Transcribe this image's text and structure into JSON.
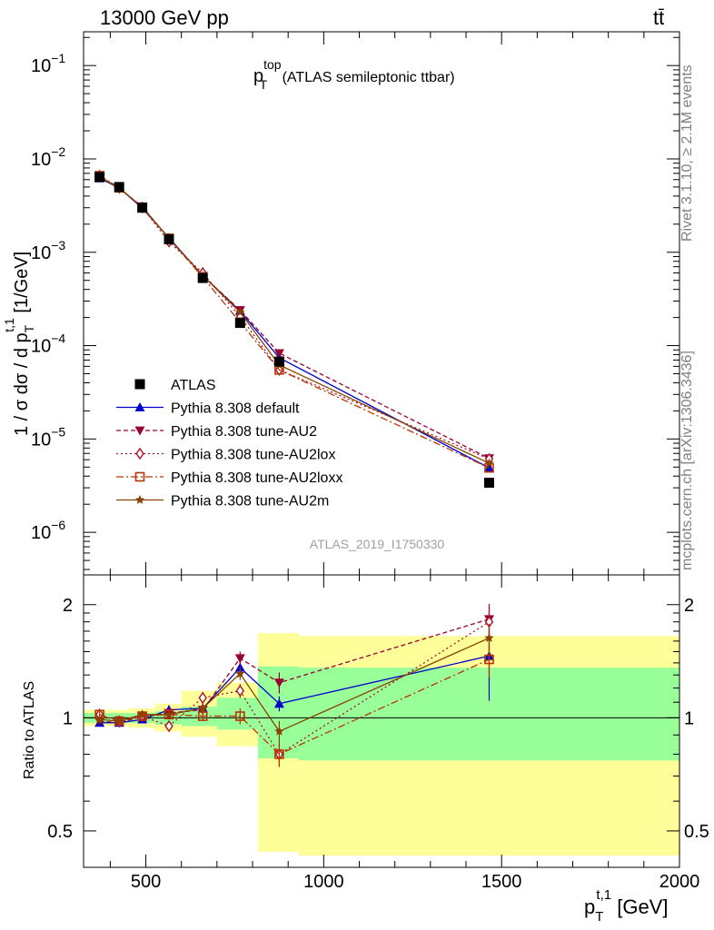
{
  "header": {
    "collision": "13000 GeV pp",
    "process": "tt̄"
  },
  "plot_title": {
    "main": "p",
    "sup": "top",
    "sub": "T",
    "rest": " (ATLAS semileptonic ttbar)"
  },
  "side_labels": {
    "rivet": "Rivet 3.1.10, ≥ 2.1M events",
    "mcplots": "mcplots.cern.ch [arXiv:1306.3436]"
  },
  "analysis_id": "ATLAS_2019_I1750330",
  "colors": {
    "atlas": "#000000",
    "default": "#0000cc",
    "au2": "#990033",
    "au2lox": "#aa1122",
    "au2loxx": "#bb3300",
    "au2m": "#884400",
    "band_yellow": "#ffff99",
    "band_green": "#99ff99"
  },
  "chart_data": [
    {
      "type": "line",
      "xlabel": "p_T^{t,1} [GeV]",
      "ylabel": "1 / σ dσ / d p_T^{t,1} [1/GeV]",
      "ylabel_parts": {
        "a": "1 / σ dσ / d p",
        "sub": "T",
        "sup": "t,1",
        "b": " [1/GeV]"
      },
      "xlabel_parts": {
        "a": "p",
        "sub": "T",
        "sup": "t,1",
        "b": " [GeV]"
      },
      "yscale": "log",
      "xlim": [
        325,
        2000
      ],
      "ylim": [
        3.5e-07,
        0.23
      ],
      "yticks": [
        {
          "v": 1e-06,
          "base": "10",
          "exp": "−6"
        },
        {
          "v": 1e-05,
          "base": "10",
          "exp": "−5"
        },
        {
          "v": 0.0001,
          "base": "10",
          "exp": "−4"
        },
        {
          "v": 0.001,
          "base": "10",
          "exp": "−3"
        },
        {
          "v": 0.01,
          "base": "10",
          "exp": "−2"
        },
        {
          "v": 0.1,
          "base": "10",
          "exp": "−1"
        }
      ],
      "x": [
        370,
        425,
        490,
        565,
        660,
        765,
        875,
        1465
      ],
      "bins": [
        [
          325,
          400
        ],
        [
          400,
          450
        ],
        [
          450,
          525
        ],
        [
          525,
          600
        ],
        [
          600,
          700
        ],
        [
          700,
          815
        ],
        [
          815,
          930
        ],
        [
          930,
          2000
        ]
      ],
      "atlas": [
        0.0064,
        0.005,
        0.003,
        0.00138,
        0.00053,
        0.000175,
        6.75e-05,
        3.4e-06
      ],
      "legend": [
        {
          "key": "atlas",
          "label": "ATLAS",
          "marker": "square",
          "dash": ""
        },
        {
          "key": "default",
          "label": "Pythia 8.308 default",
          "marker": "triangle-up",
          "dash": ""
        },
        {
          "key": "au2",
          "label": "Pythia 8.308 tune-AU2",
          "marker": "triangle-down",
          "dash": "5,3"
        },
        {
          "key": "au2lox",
          "label": "Pythia 8.308 tune-AU2lox",
          "marker": "diamond",
          "dash": "2,3"
        },
        {
          "key": "au2loxx",
          "label": "Pythia 8.308 tune-AU2loxx",
          "marker": "square-open",
          "dash": "8,3,2,3"
        },
        {
          "key": "au2m",
          "label": "Pythia 8.308 tune-AU2m",
          "marker": "star",
          "dash": ""
        }
      ],
      "series": [
        {
          "key": "default",
          "values": [
            0.0062,
            0.0049,
            0.00296,
            0.00143,
            0.00056,
            0.000235,
            7.4e-05,
            4.9e-06
          ]
        },
        {
          "key": "au2",
          "values": [
            0.0064,
            0.0048,
            0.0031,
            0.0014,
            0.00056,
            0.00024,
            8.3e-05,
            6.2e-06
          ]
        },
        {
          "key": "au2lox",
          "values": [
            0.0066,
            0.0049,
            0.00302,
            0.0013,
            0.0006,
            0.000205,
            5.5e-05,
            6.1e-06
          ]
        },
        {
          "key": "au2loxx",
          "values": [
            0.0066,
            0.0049,
            0.00303,
            0.00141,
            0.00054,
            0.000178,
            5.5e-05,
            4.9e-06
          ]
        },
        {
          "key": "au2m",
          "values": [
            0.0064,
            0.0049,
            0.00304,
            0.00141,
            0.00056,
            0.000228,
            6.2e-05,
            5.5e-06
          ]
        }
      ]
    },
    {
      "type": "line",
      "ylabel": "Ratio to ATLAS",
      "xlabel": "p_T^{t,1} [GeV]",
      "yscale": "log",
      "xlim": [
        325,
        2000
      ],
      "ylim": [
        0.4,
        2.4
      ],
      "yticks": [
        {
          "v": 0.5,
          "label": "0.5"
        },
        {
          "v": 1,
          "label": "1"
        },
        {
          "v": 2,
          "label": "2"
        }
      ],
      "xticks": [
        {
          "v": 500,
          "label": "500"
        },
        {
          "v": 1000,
          "label": "1000"
        },
        {
          "v": 1500,
          "label": "1500"
        },
        {
          "v": 2000,
          "label": "2000"
        }
      ],
      "x": [
        370,
        425,
        490,
        565,
        660,
        765,
        875,
        1465
      ],
      "band_yellow": [
        [
          0.95,
          1.05
        ],
        [
          0.95,
          1.05
        ],
        [
          0.94,
          1.06
        ],
        [
          0.92,
          1.09
        ],
        [
          0.89,
          1.18
        ],
        [
          0.84,
          1.24
        ],
        [
          0.44,
          1.68
        ],
        [
          0.43,
          1.65
        ]
      ],
      "band_green": [
        [
          0.97,
          1.03
        ],
        [
          0.97,
          1.03
        ],
        [
          0.97,
          1.03
        ],
        [
          0.96,
          1.04
        ],
        [
          0.95,
          1.07
        ],
        [
          0.93,
          1.13
        ],
        [
          0.78,
          1.37
        ],
        [
          0.77,
          1.36
        ]
      ],
      "series": [
        {
          "key": "default",
          "values": [
            0.97,
            0.97,
            0.99,
            1.05,
            1.06,
            1.36,
            1.09,
            1.46
          ],
          "err": [
            0.02,
            0.02,
            0.02,
            0.03,
            0.03,
            0.05,
            0.05,
            0.35
          ]
        },
        {
          "key": "au2",
          "values": [
            0.98,
            0.97,
            1.01,
            1.03,
            1.05,
            1.44,
            1.24,
            1.83
          ],
          "err": [
            0.02,
            0.02,
            0.02,
            0.03,
            0.03,
            0.06,
            0.08,
            0.18
          ]
        },
        {
          "key": "au2lox",
          "values": [
            1.02,
            0.98,
            1.01,
            0.95,
            1.13,
            1.18,
            0.8,
            1.8
          ],
          "err": [
            0.02,
            0.02,
            0.02,
            0.03,
            0.04,
            0.05,
            0.06,
            0.18
          ]
        },
        {
          "key": "au2loxx",
          "values": [
            1.02,
            0.98,
            1.01,
            1.02,
            1.01,
            1.01,
            0.8,
            1.43
          ],
          "err": [
            0.02,
            0.02,
            0.02,
            0.03,
            0.03,
            0.05,
            0.06,
            0.15
          ]
        },
        {
          "key": "au2m",
          "values": [
            0.99,
            0.98,
            1.02,
            1.02,
            1.06,
            1.31,
            0.92,
            1.63
          ],
          "err": [
            0.02,
            0.02,
            0.02,
            0.03,
            0.03,
            0.05,
            0.06,
            0.15
          ]
        }
      ]
    }
  ]
}
